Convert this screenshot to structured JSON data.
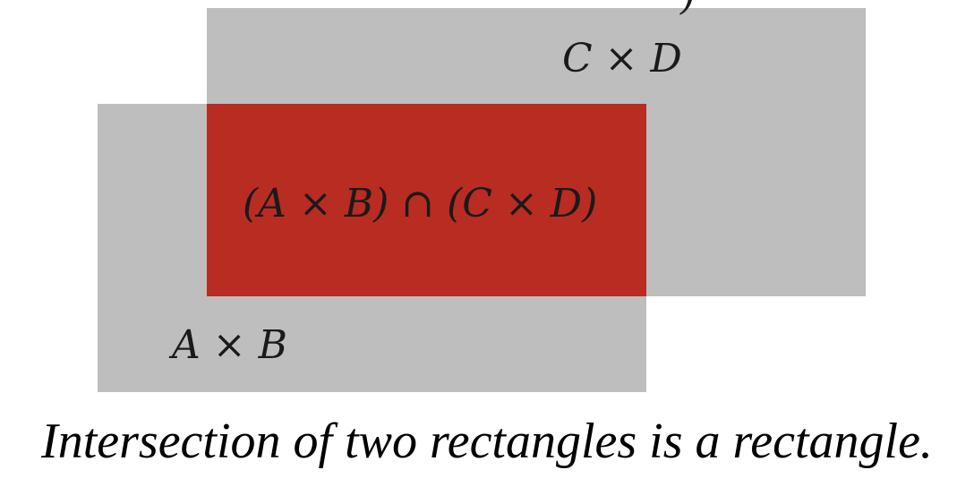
{
  "colors": {
    "rectangle_fill": "#bebebe",
    "intersection_fill": "#b82c22",
    "text": "#1a1a1a"
  },
  "labels": {
    "cd": "C × D",
    "ab": "A × B",
    "intersection": "(A × B) ∩ (C × D)"
  },
  "caption": "Intersection of two rectangles is a rectangle."
}
